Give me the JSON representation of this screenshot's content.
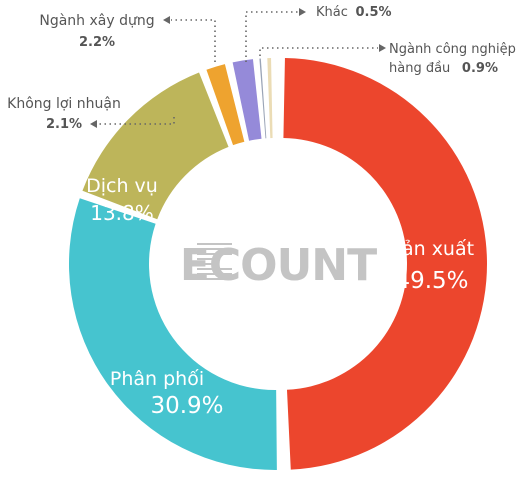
{
  "chart_data": {
    "type": "pie",
    "donut": true,
    "center_logo": "ECOUNT",
    "slices": [
      {
        "label": "Sản xuất",
        "value": 49.5,
        "display": "49.5%",
        "color": "#ec462d"
      },
      {
        "label": "Phân phối",
        "value": 30.9,
        "display": "30.9%",
        "color": "#46c4cf"
      },
      {
        "label": "Dịch vụ",
        "value": 13.8,
        "display": "13.8%",
        "color": "#bdb55a"
      },
      {
        "label": "Không lợi nhuận",
        "value": 2.1,
        "display": "2.1%",
        "color": "#eea32f"
      },
      {
        "label": "Ngành xây dựng",
        "value": 2.2,
        "display": "2.2%",
        "color": "#958ad9"
      },
      {
        "label": "Khác",
        "value": 0.5,
        "display": "0.5%",
        "color": "#9aa4b6"
      },
      {
        "label": "Ngành công nghiệp hàng đầu",
        "label_lines": [
          "Ngành công nghiệp",
          "hàng đầu"
        ],
        "value": 0.9,
        "display": "0.9%",
        "color": "#ebdcb5"
      }
    ]
  }
}
